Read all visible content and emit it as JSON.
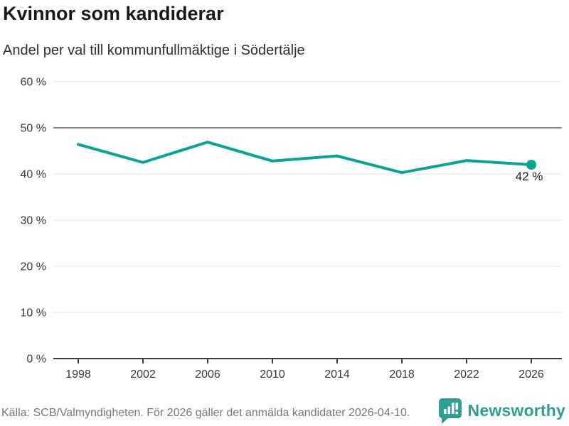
{
  "chart_data": {
    "type": "line",
    "title": "Kvinnor som kandiderar",
    "subtitle": "Andel per val till kommunfullmäktige i Södertälje",
    "x": [
      "1998",
      "2002",
      "2006",
      "2010",
      "2014",
      "2018",
      "2022",
      "2026"
    ],
    "values": [
      46.4,
      42.5,
      46.9,
      42.8,
      43.9,
      40.3,
      42.9,
      42
    ],
    "unit": "%",
    "end_label": "42 %",
    "y_ticks": [
      "0 %",
      "10 %",
      "20 %",
      "30 %",
      "40 %",
      "50 %",
      "60 %"
    ],
    "ylim": [
      0,
      60
    ],
    "benchmark": 50,
    "grid": true,
    "legend": "none",
    "line_color": "#0aa396"
  },
  "footer": {
    "source": "Källa: SCB/Valmyndigheten. För 2026 gäller det anmälda kandidater 2026-04-10.",
    "brand": "Newsworthy"
  },
  "colors": {
    "accent": "#0aa396",
    "logo": "#2f9e92",
    "grid": "#e3e3e3",
    "benchmark": "#868686",
    "axis": "#3c3c3c",
    "tick_text": "#383838",
    "title_text": "#191919",
    "subtitle_text": "#2e2e2e",
    "end_label_text": "#191919",
    "source_text": "#767676"
  }
}
